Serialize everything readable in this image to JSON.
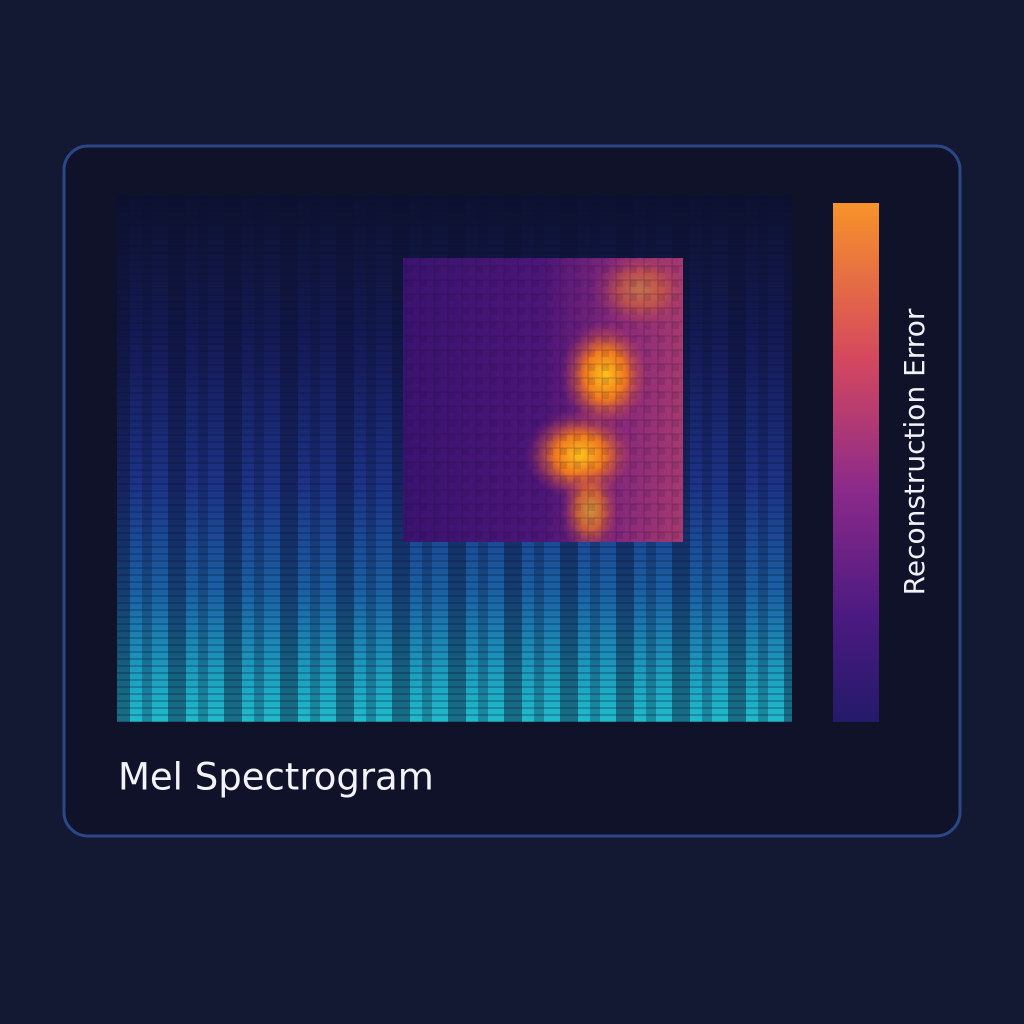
{
  "panel": {
    "title": "Mel Spectrogram",
    "colorbar_label": "Reconstruction Error"
  }
}
